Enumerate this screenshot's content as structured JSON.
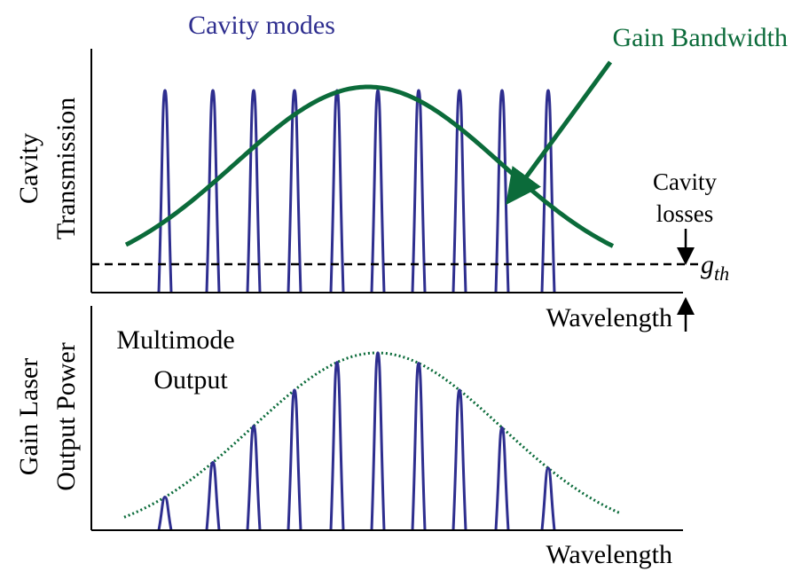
{
  "top": {
    "title": "Cavity modes",
    "gain_label": "Gain Bandwidth",
    "y_label": [
      "Cavity",
      "Transmission"
    ],
    "losses_label": [
      "Cavity",
      "losses"
    ],
    "threshold": {
      "base": "g",
      "sub": "th"
    },
    "x_label": "Wavelength"
  },
  "bottom": {
    "label": [
      "Multimode",
      "Output"
    ],
    "y_label": [
      "Gain Laser",
      "Output Power"
    ],
    "x_label": "Wavelength"
  }
}
